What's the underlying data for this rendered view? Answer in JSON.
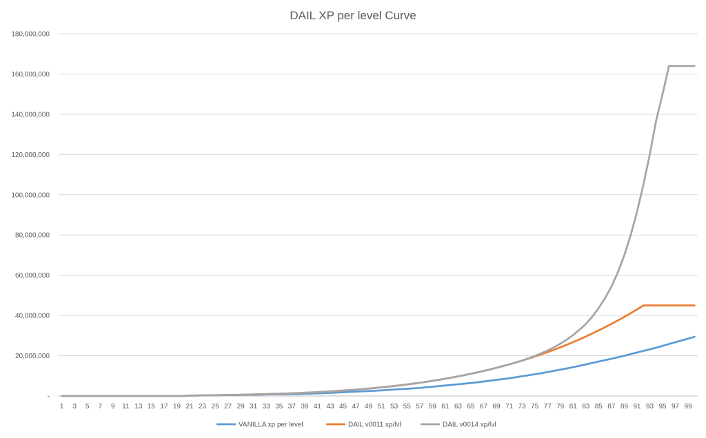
{
  "chart_data": {
    "type": "line",
    "title": "DAIL XP per level Curve",
    "xlabel": "",
    "ylabel": "",
    "ylim": [
      0,
      180000000
    ],
    "y_ticks": [
      0,
      20000000,
      40000000,
      60000000,
      80000000,
      100000000,
      120000000,
      140000000,
      160000000,
      180000000
    ],
    "y_tick_labels": [
      "-",
      "20,000,000",
      "40,000,000",
      "60,000,000",
      "80,000,000",
      "100,000,000",
      "120,000,000",
      "140,000,000",
      "160,000,000",
      "180,000,000"
    ],
    "x_tick_labels": [
      "1",
      "3",
      "5",
      "7",
      "9",
      "11",
      "13",
      "15",
      "17",
      "19",
      "21",
      "23",
      "25",
      "27",
      "29",
      "31",
      "33",
      "35",
      "37",
      "39",
      "41",
      "43",
      "45",
      "47",
      "49",
      "51",
      "53",
      "55",
      "57",
      "59",
      "61",
      "63",
      "65",
      "67",
      "69",
      "71",
      "73",
      "75",
      "77",
      "79",
      "81",
      "83",
      "85",
      "87",
      "89",
      "91",
      "93",
      "95",
      "97",
      "99"
    ],
    "grid": "horizontal",
    "legend_position": "bottom",
    "x": [
      1,
      2,
      3,
      4,
      5,
      6,
      7,
      8,
      9,
      10,
      11,
      12,
      13,
      14,
      15,
      16,
      17,
      18,
      19,
      20,
      21,
      22,
      23,
      24,
      25,
      26,
      27,
      28,
      29,
      30,
      31,
      32,
      33,
      34,
      35,
      36,
      37,
      38,
      39,
      40,
      41,
      42,
      43,
      44,
      45,
      46,
      47,
      48,
      49,
      50,
      51,
      52,
      53,
      54,
      55,
      56,
      57,
      58,
      59,
      60,
      61,
      62,
      63,
      64,
      65,
      66,
      67,
      68,
      69,
      70,
      71,
      72,
      73,
      74,
      75,
      76,
      77,
      78,
      79,
      80,
      81,
      82,
      83,
      84,
      85,
      86,
      87,
      88,
      89,
      90,
      91,
      92,
      93,
      94,
      95,
      96,
      97,
      98,
      99,
      100
    ],
    "series": [
      {
        "name": "VANILLA xp per level",
        "color": "#5B9BD5",
        "values": [
          0,
          0,
          0,
          0,
          0,
          0,
          0,
          0,
          0,
          0,
          0,
          0,
          0,
          0,
          0,
          0,
          0,
          0,
          0,
          0,
          150000,
          200000,
          250000,
          300000,
          350000,
          400000,
          450000,
          500000,
          550000,
          600000,
          650000,
          700000,
          750000,
          800000,
          850000,
          900000,
          950000,
          1000000,
          1100000,
          1200000,
          1300000,
          1400000,
          1550000,
          1700000,
          1850000,
          2000000,
          2150000,
          2300000,
          2450000,
          2600000,
          2800000,
          3000000,
          3200000,
          3400000,
          3600000,
          3800000,
          4000000,
          4300000,
          4600000,
          4900000,
          5200000,
          5500000,
          5800000,
          6100000,
          6400000,
          6800000,
          7200000,
          7600000,
          8000000,
          8400000,
          8800000,
          9300000,
          9800000,
          10300000,
          10800000,
          11300000,
          11900000,
          12500000,
          13100000,
          13700000,
          14300000,
          15000000,
          15700000,
          16400000,
          17100000,
          17800000,
          18500000,
          19200000,
          20000000,
          20800000,
          21600000,
          22400000,
          23200000,
          24000000,
          24900000,
          25800000,
          26700000,
          27600000,
          28500000,
          29400000
        ]
      },
      {
        "name": "DAIL v0011 xp/lvl",
        "color": "#ED7D31",
        "values": [
          0,
          0,
          0,
          0,
          0,
          0,
          0,
          0,
          0,
          0,
          0,
          0,
          0,
          0,
          0,
          0,
          0,
          0,
          0,
          0,
          200000,
          250000,
          300000,
          350000,
          400000,
          450000,
          500000,
          560000,
          620000,
          690000,
          760000,
          840000,
          920000,
          1010000,
          1110000,
          1220000,
          1340000,
          1470000,
          1610000,
          1760000,
          1920000,
          2090000,
          2270000,
          2470000,
          2680000,
          2910000,
          3150000,
          3410000,
          3680000,
          3970000,
          4280000,
          4610000,
          4960000,
          5330000,
          5720000,
          6130000,
          6570000,
          7030000,
          7520000,
          8030000,
          8570000,
          9140000,
          9740000,
          10370000,
          11030000,
          11720000,
          12450000,
          13210000,
          14010000,
          14840000,
          15710000,
          16620000,
          17570000,
          18560000,
          19600000,
          20680000,
          21800000,
          22970000,
          24190000,
          25460000,
          26780000,
          28150000,
          29570000,
          31050000,
          32580000,
          34170000,
          35820000,
          37530000,
          39300000,
          41130000,
          43020000,
          44980000,
          45000000,
          45000000,
          45000000,
          45000000,
          45000000,
          45000000,
          45000000,
          45000000
        ]
      },
      {
        "name": "DAIL v0014 xp/lvl",
        "color": "#A5A5A5",
        "values": [
          0,
          0,
          0,
          0,
          0,
          0,
          0,
          0,
          0,
          0,
          0,
          0,
          0,
          0,
          0,
          0,
          0,
          0,
          0,
          0,
          200000,
          250000,
          300000,
          350000,
          400000,
          450000,
          500000,
          560000,
          620000,
          690000,
          760000,
          840000,
          920000,
          1010000,
          1110000,
          1220000,
          1340000,
          1470000,
          1610000,
          1760000,
          1920000,
          2090000,
          2270000,
          2470000,
          2680000,
          2910000,
          3150000,
          3410000,
          3680000,
          3970000,
          4280000,
          4610000,
          4960000,
          5330000,
          5720000,
          6130000,
          6570000,
          7030000,
          7520000,
          8030000,
          8570000,
          9140000,
          9740000,
          10370000,
          11030000,
          11720000,
          12450000,
          13210000,
          14010000,
          14840000,
          15710000,
          16620000,
          17570000,
          18700000,
          19900000,
          21200000,
          22600000,
          24200000,
          26000000,
          28000000,
          30300000,
          32900000,
          35800000,
          39400000,
          43700000,
          48600000,
          54400000,
          61400000,
          69800000,
          79800000,
          91500000,
          105000000,
          120000000,
          137000000,
          150000000,
          164000000,
          164000000,
          164000000,
          164000000,
          164000000
        ]
      }
    ]
  }
}
